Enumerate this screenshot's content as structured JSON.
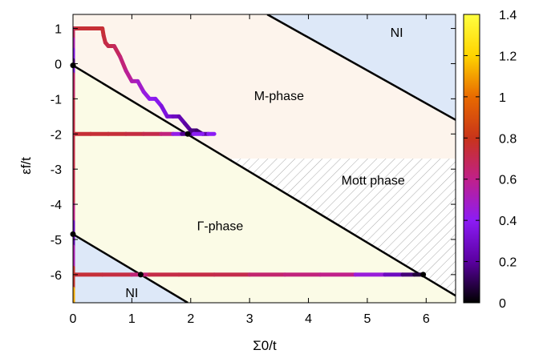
{
  "chart_data": {
    "type": "line",
    "xlabel": "Σ0/t",
    "ylabel": "εf/t",
    "xlim": [
      0,
      6.5
    ],
    "ylim": [
      -6.8,
      1.4
    ],
    "xticks": [
      "0",
      "1",
      "2",
      "3",
      "4",
      "5",
      "6"
    ],
    "yticks": [
      "1",
      "0",
      "-1",
      "-2",
      "-3",
      "-4",
      "-5",
      "-6"
    ],
    "colorbar": {
      "range": [
        0,
        1.4
      ],
      "ticks": [
        "0",
        "0.2",
        "0.4",
        "0.6",
        "0.8",
        "1",
        "1.2",
        "1.4"
      ],
      "colormap": [
        "#000000",
        "#5a00a0",
        "#8c1cf5",
        "#c0208a",
        "#c8341a",
        "#e86a00",
        "#ffd400",
        "#ffff40"
      ]
    },
    "regions": [
      {
        "label": "M-phase",
        "x": 3.5,
        "y": -0.9,
        "color": "#fdf4ec"
      },
      {
        "label": "Γ-phase",
        "x": 2.5,
        "y": -4.6,
        "color": "#fbfbe6"
      },
      {
        "label": "Mott phase",
        "x": 5.1,
        "y": -3.3,
        "color": "#ffffff"
      },
      {
        "label": "NI",
        "x": 5.5,
        "y": 0.9,
        "color": "#dde8f8"
      },
      {
        "label": "NI",
        "x": 1.0,
        "y": -6.5,
        "color": "#dde8f8"
      }
    ],
    "boundaries": [
      {
        "name": "upper",
        "x": [
          3.3,
          6.5
        ],
        "y": [
          1.4,
          -1.6
        ]
      },
      {
        "name": "middle",
        "x": [
          0,
          6.5
        ],
        "y": [
          -0.05,
          -6.6
        ]
      },
      {
        "name": "lower",
        "x": [
          0,
          1.95
        ],
        "y": [
          -4.85,
          -6.8
        ]
      }
    ],
    "mott_region": {
      "x": [
        2.8,
        6.5
      ],
      "y_top": -2.7
    },
    "series": [
      {
        "x": [
          0.0,
          0.5,
          0.52,
          0.55,
          0.6,
          0.7,
          0.8,
          0.9,
          1.0,
          1.1,
          1.2,
          1.3,
          1.4,
          1.5,
          1.6,
          1.7,
          1.8,
          1.9,
          2.0,
          2.1,
          2.2,
          2.3,
          2.4
        ],
        "y": [
          1.0,
          1.0,
          0.8,
          0.6,
          0.5,
          0.5,
          0.2,
          -0.2,
          -0.5,
          -0.5,
          -0.8,
          -1.0,
          -1.0,
          -1.2,
          -1.5,
          -1.5,
          -1.5,
          -1.7,
          -1.9,
          -1.9,
          -2.0,
          -2.0,
          -2.0
        ],
        "c": [
          0.75,
          0.75,
          0.75,
          0.72,
          0.72,
          0.7,
          0.66,
          0.6,
          0.55,
          0.5,
          0.46,
          0.42,
          0.4,
          0.36,
          0.33,
          0.3,
          0.26,
          0.22,
          0.18,
          0.15,
          0.12,
          0.3,
          0.5
        ]
      },
      {
        "x": [
          0.0,
          0.3,
          0.6,
          0.9,
          1.2,
          1.5,
          1.7,
          1.85,
          1.95,
          2.05,
          2.2
        ],
        "y": [
          -2.0,
          -2.0,
          -2.0,
          -2.0,
          -2.0,
          -2.0,
          -2.0,
          -2.0,
          -2.0,
          -2.0,
          -2.0
        ],
        "c": [
          0.75,
          0.75,
          0.75,
          0.74,
          0.72,
          0.7,
          0.55,
          0.3,
          0.05,
          0.3,
          0.5
        ]
      },
      {
        "x": [
          0.0,
          0.5,
          1.0,
          1.15,
          1.3,
          1.8,
          2.4,
          3.0,
          3.6,
          4.2,
          4.8,
          5.3,
          5.6,
          5.8,
          5.95
        ],
        "y": [
          -6.0,
          -6.0,
          -6.0,
          -6.0,
          -6.0,
          -6.0,
          -6.0,
          -6.0,
          -6.0,
          -6.0,
          -6.0,
          -6.0,
          -6.0,
          -6.0,
          -6.0
        ],
        "c": [
          0.75,
          0.74,
          0.72,
          0.55,
          0.72,
          0.72,
          0.72,
          0.7,
          0.6,
          0.65,
          0.55,
          0.35,
          0.2,
          0.1,
          0.05
        ]
      },
      {
        "x": [
          0.0,
          0.0,
          0.0,
          0.0,
          0.0,
          0.0,
          0.0,
          0.0,
          0.0,
          0.0,
          0.0,
          0.0,
          0.0,
          0.0,
          0.0,
          0.0
        ],
        "y": [
          1.0,
          0.7,
          0.4,
          0.1,
          -0.05,
          -0.3,
          -1.0,
          -2.0,
          -3.0,
          -4.0,
          -4.5,
          -4.85,
          -5.2,
          -5.8,
          -6.4,
          -6.8
        ],
        "c": [
          0.75,
          0.6,
          0.45,
          0.25,
          0.02,
          0.6,
          0.72,
          0.72,
          0.72,
          0.7,
          0.5,
          0.05,
          0.4,
          0.65,
          0.9,
          1.35
        ]
      }
    ],
    "markers": [
      {
        "x": 0.0,
        "y": -0.05
      },
      {
        "x": 0.0,
        "y": -4.85
      },
      {
        "x": 1.95,
        "y": -2.0
      },
      {
        "x": 1.15,
        "y": -6.0
      },
      {
        "x": 5.95,
        "y": -6.0
      }
    ]
  }
}
